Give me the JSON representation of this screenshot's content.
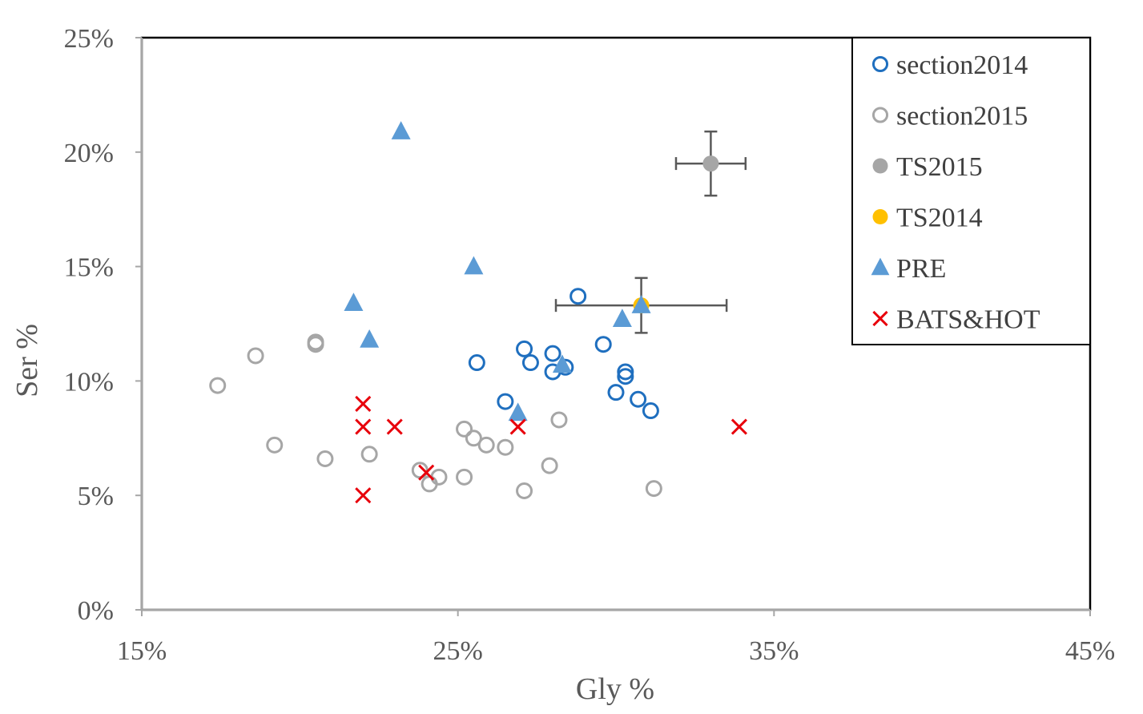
{
  "chart_data": {
    "type": "scatter",
    "title": "",
    "xlabel": "Gly %",
    "ylabel": "Ser %",
    "xlim": [
      0.15,
      0.45
    ],
    "ylim": [
      0,
      0.25
    ],
    "xticks": [
      0.15,
      0.25,
      0.35,
      0.45
    ],
    "yticks": [
      0,
      0.05,
      0.1,
      0.15,
      0.2,
      0.25
    ],
    "xtick_labels": [
      "15%",
      "25%",
      "35%",
      "45%"
    ],
    "ytick_labels": [
      "0%",
      "5%",
      "10%",
      "15%",
      "20%",
      "25%"
    ],
    "grid": false,
    "legend_position": "top-right",
    "series": [
      {
        "name": "section2014",
        "marker": "open-circle",
        "color": "#1F6FBF",
        "points": [
          [
            0.288,
            0.137
          ],
          [
            0.256,
            0.108
          ],
          [
            0.271,
            0.114
          ],
          [
            0.28,
            0.112
          ],
          [
            0.273,
            0.108
          ],
          [
            0.28,
            0.104
          ],
          [
            0.284,
            0.106
          ],
          [
            0.296,
            0.116
          ],
          [
            0.303,
            0.104
          ],
          [
            0.303,
            0.102
          ],
          [
            0.3,
            0.095
          ],
          [
            0.307,
            0.092
          ],
          [
            0.311,
            0.087
          ],
          [
            0.265,
            0.091
          ]
        ]
      },
      {
        "name": "section2015",
        "marker": "open-circle",
        "color": "#A6A6A6",
        "points": [
          [
            0.174,
            0.098
          ],
          [
            0.186,
            0.111
          ],
          [
            0.205,
            0.117
          ],
          [
            0.205,
            0.116
          ],
          [
            0.192,
            0.072
          ],
          [
            0.208,
            0.066
          ],
          [
            0.222,
            0.068
          ],
          [
            0.238,
            0.061
          ],
          [
            0.241,
            0.055
          ],
          [
            0.244,
            0.058
          ],
          [
            0.252,
            0.058
          ],
          [
            0.252,
            0.079
          ],
          [
            0.255,
            0.075
          ],
          [
            0.259,
            0.072
          ],
          [
            0.265,
            0.071
          ],
          [
            0.271,
            0.052
          ],
          [
            0.279,
            0.063
          ],
          [
            0.282,
            0.083
          ],
          [
            0.312,
            0.053
          ]
        ]
      },
      {
        "name": "TS2015",
        "marker": "filled-circle",
        "color": "#A6A6A6",
        "points": [
          [
            0.33,
            0.195
          ]
        ],
        "x_error": 0.011,
        "y_error": 0.014,
        "error_color": "#595959"
      },
      {
        "name": "TS2014",
        "marker": "filled-circle",
        "color": "#FFC000",
        "points": [
          [
            0.308,
            0.133
          ]
        ],
        "x_error": 0.027,
        "y_error": 0.012,
        "error_color": "#595959"
      },
      {
        "name": "PRE",
        "marker": "filled-triangle",
        "color": "#5B9BD5",
        "points": [
          [
            0.232,
            0.209
          ],
          [
            0.255,
            0.15
          ],
          [
            0.217,
            0.134
          ],
          [
            0.222,
            0.118
          ],
          [
            0.283,
            0.107
          ],
          [
            0.269,
            0.086
          ],
          [
            0.302,
            0.127
          ],
          [
            0.308,
            0.133
          ]
        ]
      },
      {
        "name": "BATS&HOT",
        "marker": "x",
        "color": "#E8000B",
        "points": [
          [
            0.22,
            0.09
          ],
          [
            0.22,
            0.08
          ],
          [
            0.23,
            0.08
          ],
          [
            0.22,
            0.05
          ],
          [
            0.24,
            0.06
          ],
          [
            0.269,
            0.08
          ],
          [
            0.339,
            0.08
          ]
        ]
      }
    ]
  }
}
